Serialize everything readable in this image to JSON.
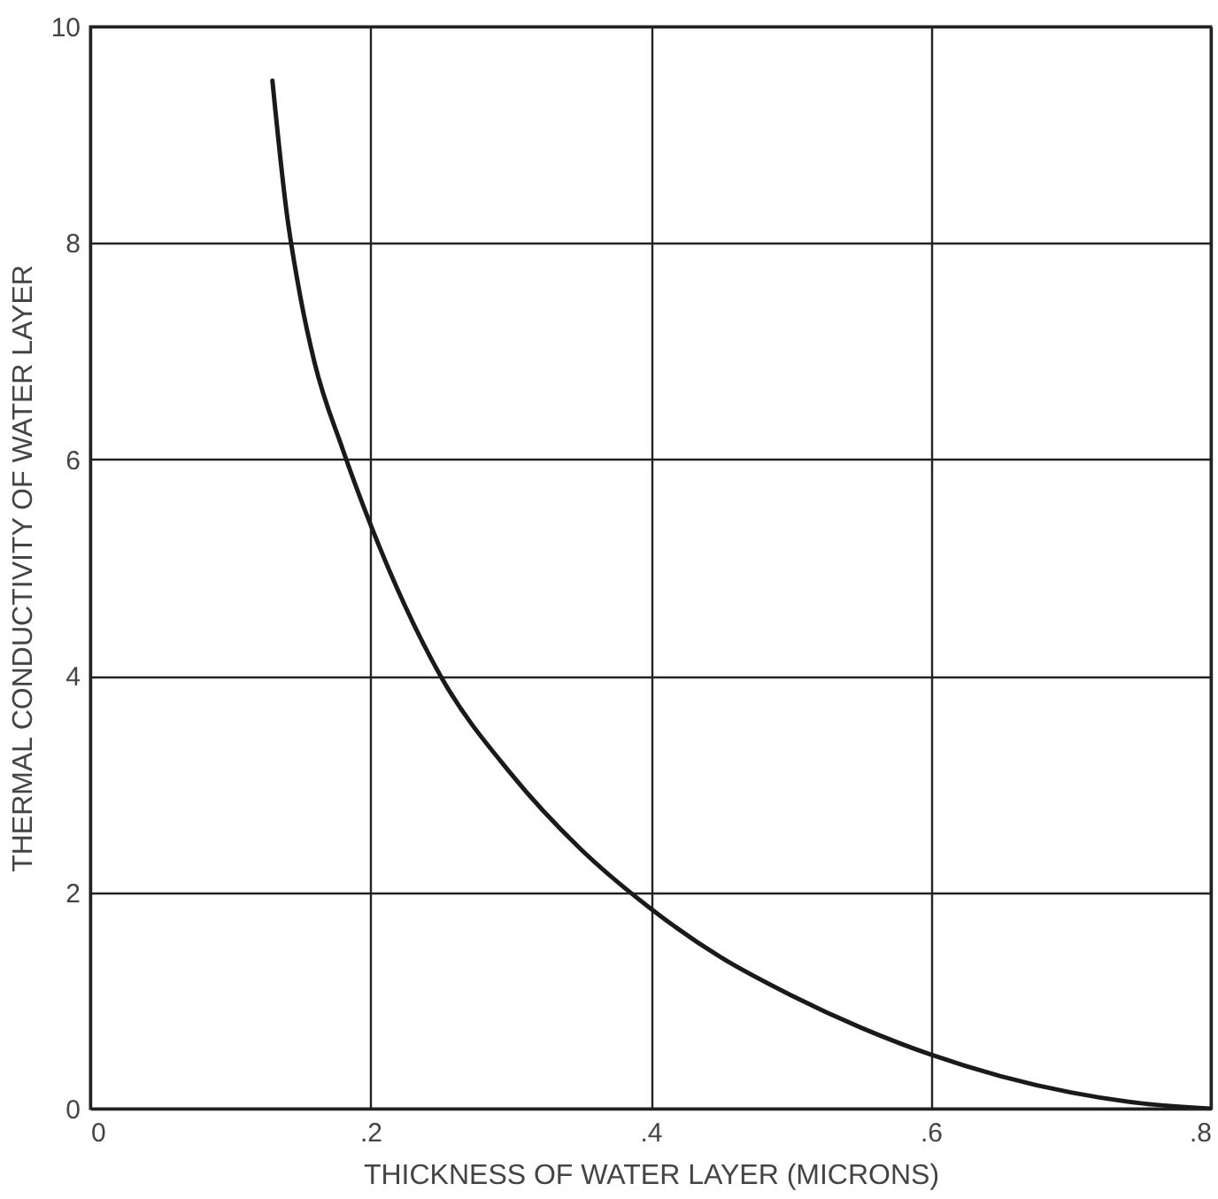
{
  "chart_data": {
    "type": "line",
    "xlabel": "THICKNESS OF WATER LAYER (MICRONS)",
    "ylabel": "THERMAL CONDUCTIVITY OF WATER LAYER",
    "x": [
      0.13,
      0.14,
      0.15,
      0.16,
      0.18,
      0.2,
      0.25,
      0.3,
      0.35,
      0.4,
      0.45,
      0.5,
      0.55,
      0.6,
      0.65,
      0.7,
      0.75,
      0.8
    ],
    "series": [
      {
        "color": "#1a1a1a",
        "values": [
          9.5,
          8.3,
          7.5,
          6.9,
          6.1,
          5.4,
          4.0,
          3.1,
          2.4,
          1.85,
          1.4,
          1.05,
          0.75,
          0.5,
          0.3,
          0.15,
          0.05,
          0
        ]
      }
    ],
    "xlim": [
      0,
      0.8
    ],
    "xticks": [
      {
        "value": 0,
        "label": "0"
      },
      {
        "value": 0.2,
        "label": ".2"
      },
      {
        "value": 0.4,
        "label": ".4"
      },
      {
        "value": 0.6,
        "label": ".6"
      },
      {
        "value": 0.8,
        "label": ".8"
      }
    ],
    "ylim": [
      0,
      10
    ],
    "yticks": [
      0,
      2,
      4,
      6,
      8,
      10
    ],
    "grid": true,
    "marker": "none",
    "line_style": "solid"
  }
}
